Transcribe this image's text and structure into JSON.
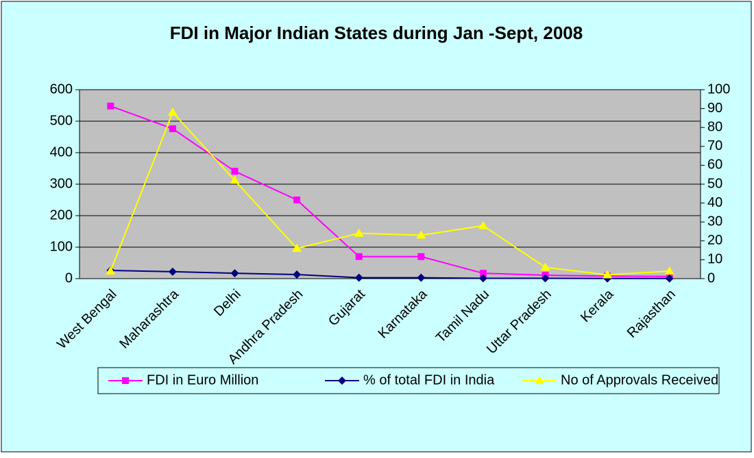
{
  "chart_data": {
    "type": "line",
    "title": "FDI in Major Indian States during Jan -Sept, 2008",
    "categories": [
      "West Bengal",
      "Maharashtra",
      "Delhi",
      "Andhra Pradesh",
      "Gujarat",
      "Karnataka",
      "Tamil Nadu",
      "Uttar Pradesh",
      "Kerala",
      "Rajasthan"
    ],
    "series": [
      {
        "name": "FDI in Euro Million",
        "color": "#ff00ff",
        "marker": "square",
        "values": [
          548,
          476,
          341,
          250,
          70,
          70,
          17,
          11,
          8,
          7
        ]
      },
      {
        "name": "% of total FDI in India",
        "color": "#000080",
        "marker": "diamond",
        "values": [
          26,
          22,
          17,
          13,
          3,
          3,
          1,
          1,
          0.5,
          0.5
        ]
      },
      {
        "name": "No of Approvals Received",
        "color": "#ffff00",
        "marker": "triangle",
        "axis": "y2",
        "values": [
          4,
          88,
          52,
          16,
          24,
          23,
          28,
          6,
          2,
          4
        ]
      }
    ],
    "ylim": [
      0,
      600
    ],
    "yticks": [
      0,
      100,
      200,
      300,
      400,
      500,
      600
    ],
    "y2lim": [
      0,
      100
    ],
    "y2ticks": [
      0,
      10,
      20,
      30,
      40,
      50,
      60,
      70,
      80,
      90,
      100
    ],
    "grid": true,
    "legend": "bottom"
  }
}
